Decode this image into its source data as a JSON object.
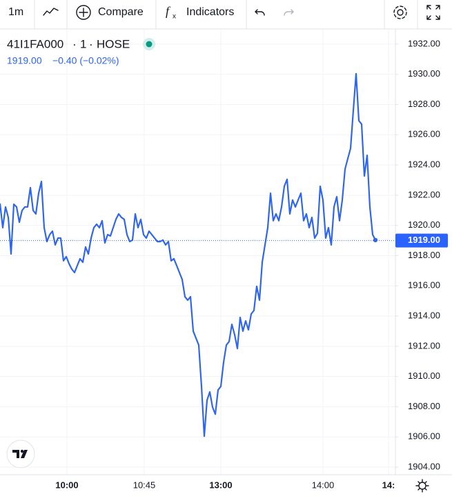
{
  "toolbar": {
    "interval": "1m",
    "compare": "Compare",
    "indicators": "Indicators"
  },
  "chart_data": {
    "type": "line",
    "symbol": "41I1FA000",
    "interval": "1",
    "exchange": "HOSE",
    "change": "−0.40 (−0.02%)",
    "last": {
      "value": 1919,
      "label": "1919.00"
    },
    "series": [
      {
        "name": "41I1FA000",
        "color": "#2f66ea",
        "values": [
          1921.45,
          1919.85,
          1921.22,
          1920.53,
          1918.11,
          1921.4,
          1921.22,
          1920.21,
          1920.99,
          1921.22,
          1921.22,
          1922.5,
          1920.99,
          1920.76,
          1922.13,
          1922.91,
          1919.85,
          1918.93,
          1919.39,
          1919.62,
          1918.71,
          1919.16,
          1919.16,
          1917.66,
          1917.93,
          1917.47,
          1917.11,
          1916.88,
          1917.34,
          1917.79,
          1917.56,
          1918.57,
          1918.11,
          1919.16,
          1919.85,
          1920.08,
          1919.85,
          1920.31,
          1918.84,
          1919.39,
          1919.3,
          1919.85,
          1920.4,
          1920.76,
          1920.53,
          1920.4,
          1919.39,
          1918.93,
          1919.03,
          1920.76,
          1919.85,
          1920.4,
          1919.39,
          1919.16,
          1919.62,
          1919.39,
          1919.16,
          1918.93,
          1918.93,
          1919.03,
          1918.71,
          1918.93,
          1917.66,
          1917.79,
          1917.34,
          1916.88,
          1916.42,
          1915.28,
          1915.05,
          1915.28,
          1913.0,
          1912.54,
          1912.08,
          1909.34,
          1906.05,
          1908.43,
          1908.98,
          1907.97,
          1907.51,
          1909.11,
          1909.34,
          1910.94,
          1912.08,
          1912.31,
          1913.45,
          1912.77,
          1911.85,
          1913.91,
          1913.0,
          1913.68,
          1913.09,
          1914.14,
          1914.37,
          1915.97,
          1915.05,
          1917.56,
          1918.71,
          1919.85,
          1922.13,
          1920.31,
          1920.76,
          1920.31,
          1921.22,
          1922.59,
          1923.05,
          1920.76,
          1921.68,
          1921.22,
          1921.68,
          1922.13,
          1920.31,
          1920.76,
          1919.85,
          1920.53,
          1919.16,
          1919.48,
          1922.59,
          1921.68,
          1919.16,
          1919.85,
          1918.71,
          1921.22,
          1921.9,
          1920.31,
          1921.68,
          1923.73,
          1924.42,
          1925.1,
          1927.61,
          1930.04,
          1926.93,
          1926.7,
          1923.27,
          1924.64,
          1921.22,
          1919.39,
          1919.03
        ]
      }
    ],
    "xlim": [
      0,
      143.25
    ],
    "xticks": [
      {
        "value": 24.25,
        "label": "10:00"
      },
      {
        "value": 52.25,
        "label": "10:45"
      },
      {
        "value": 80,
        "label": "13:00"
      },
      {
        "value": 117,
        "label": "14:00"
      },
      {
        "value": 140.75,
        "label": "14:"
      }
    ],
    "ylim": [
      1903.5,
      1933
    ],
    "yticks": [
      {
        "value": 1904,
        "label": "1904.00"
      },
      {
        "value": 1906,
        "label": "1906.00"
      },
      {
        "value": 1908,
        "label": "1908.00"
      },
      {
        "value": 1910,
        "label": "1910.00"
      },
      {
        "value": 1912,
        "label": "1912.00"
      },
      {
        "value": 1914,
        "label": "1914.00"
      },
      {
        "value": 1916,
        "label": "1916.00"
      },
      {
        "value": 1918,
        "label": "1918.00"
      },
      {
        "value": 1920,
        "label": "1920.00"
      },
      {
        "value": 1922,
        "label": "1922.00"
      },
      {
        "value": 1924,
        "label": "1924.00"
      },
      {
        "value": 1926,
        "label": "1926.00"
      },
      {
        "value": 1928,
        "label": "1928.00"
      },
      {
        "value": 1930,
        "label": "1930.00"
      },
      {
        "value": 1932,
        "label": "1932.00"
      }
    ],
    "grid": true
  }
}
